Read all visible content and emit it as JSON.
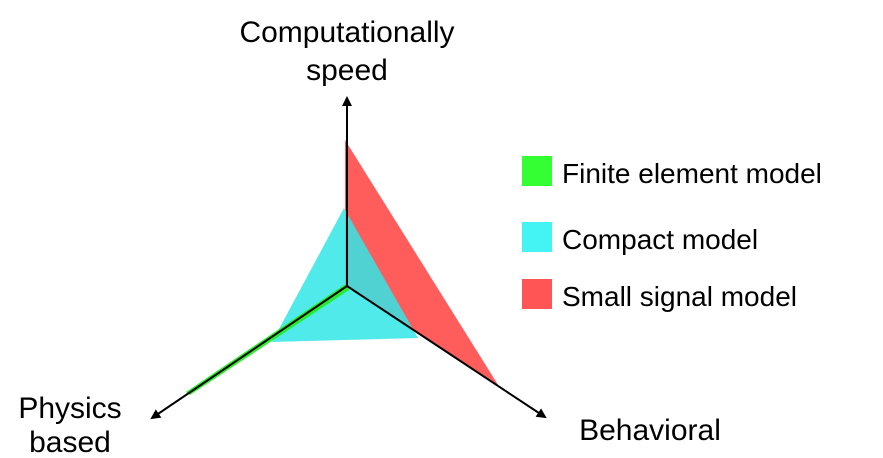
{
  "axes": {
    "top": {
      "line1": "Computationally",
      "line2": "speed"
    },
    "bottom_left": {
      "line1": "Physics",
      "line2": "based"
    },
    "bottom_right": {
      "label": "Behavioral"
    }
  },
  "legend": [
    {
      "label": "Finite element model",
      "color": "#33ff33"
    },
    {
      "label": "Compact model",
      "color": "#44f4f4"
    },
    {
      "label": "Small signal model",
      "color": "#ff5555"
    }
  ],
  "regions": {
    "finite_element_color": "#22ee22",
    "compact_color": "#33e6e6",
    "small_signal_color": "#ff4040"
  }
}
